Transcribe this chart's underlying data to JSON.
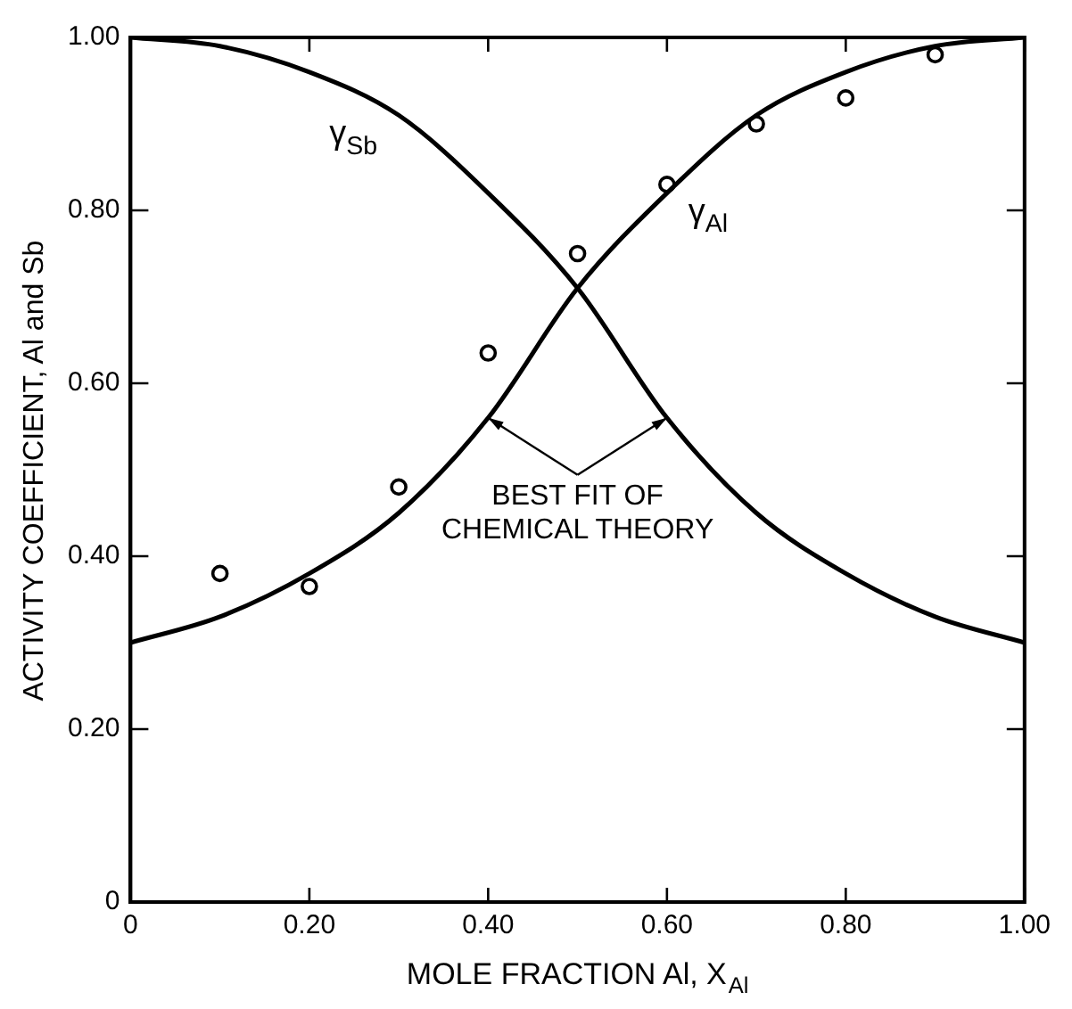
{
  "chart_data": {
    "type": "line",
    "xlabel": "MOLE FRACTION Al, X$_{Al}$",
    "ylabel": "ACTIVITY COEFFICIENT, Al and Sb",
    "xlim": [
      0,
      1
    ],
    "ylim": [
      0,
      1
    ],
    "xticks": [
      0,
      {
        "value": 0.2,
        "label": "0.20"
      },
      {
        "value": 0.4,
        "label": "0.40"
      },
      {
        "value": 0.6,
        "label": "0.60"
      },
      {
        "value": 0.8,
        "label": "0.80"
      },
      {
        "value": 1,
        "label": "1.00"
      }
    ],
    "yticks": [
      0,
      {
        "value": 0.2,
        "label": "0.20"
      },
      {
        "value": 0.4,
        "label": "0.40"
      },
      {
        "value": 0.6,
        "label": "0.60"
      },
      {
        "value": 0.8,
        "label": "0.80"
      },
      {
        "value": 1,
        "label": "1.00"
      }
    ],
    "x": [
      0,
      0.1,
      0.2,
      0.3,
      0.4,
      0.5,
      0.6,
      0.7,
      0.8,
      0.9,
      1.0
    ],
    "series": [
      {
        "name": "γ$_{Sb}$",
        "color": "#000000",
        "values": [
          1.0,
          0.99,
          0.96,
          0.91,
          0.82,
          0.71,
          0.56,
          0.45,
          0.38,
          0.33,
          0.3
        ]
      },
      {
        "name": "γ$_{Al}$",
        "color": "#000000",
        "values": [
          0.3,
          0.33,
          0.38,
          0.45,
          0.56,
          0.71,
          0.82,
          0.91,
          0.96,
          0.99,
          1.0
        ]
      },
      {
        "type": "scatter",
        "color": "#000000",
        "marker": "circle",
        "x": [
          0.1,
          0.2,
          0.3,
          0.4,
          0.5,
          0.6,
          0.7,
          0.8,
          0.9
        ],
        "values": [
          0.38,
          0.365,
          0.48,
          0.635,
          0.75,
          0.83,
          0.9,
          0.93,
          0.98
        ]
      }
    ],
    "annotations": [
      {
        "text": "BEST FIT OF\nCHEMICAL THEORY",
        "x": 0.4,
        "y": 0.56
      }
    ],
    "grid": false,
    "legend": false,
    "marker": "none",
    "line_style": "solid"
  }
}
